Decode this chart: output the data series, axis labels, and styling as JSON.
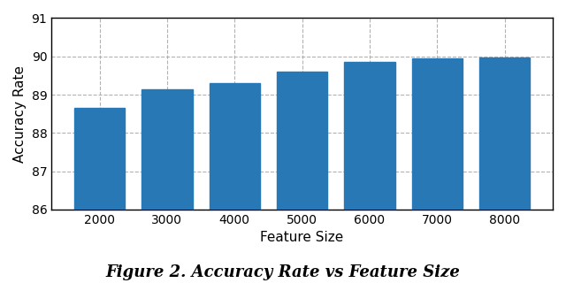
{
  "categories": [
    2000,
    3000,
    4000,
    5000,
    6000,
    7000,
    8000
  ],
  "values": [
    88.65,
    89.15,
    89.3,
    89.6,
    89.85,
    89.95,
    89.97
  ],
  "bar_color": "#2878b5",
  "xlabel": "Feature Size",
  "ylabel": "Accuracy Rate",
  "ylim": [
    86,
    91
  ],
  "yticks": [
    86,
    87,
    88,
    89,
    90,
    91
  ],
  "caption": "Figure 2. Accuracy Rate vs Feature Size",
  "grid_color": "#aaaaaa",
  "grid_linestyle": "--",
  "background_color": "#ffffff",
  "bar_width": 0.75,
  "caption_fontsize": 13,
  "axis_label_fontsize": 11,
  "tick_fontsize": 10
}
